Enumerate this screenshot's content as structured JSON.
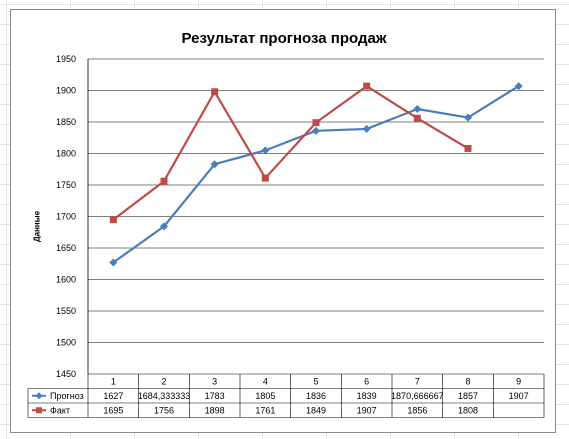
{
  "chart_data": {
    "type": "line",
    "title": "Результат прогноза продаж",
    "ylabel": "Данные",
    "xlabel": "",
    "ylim": [
      1450,
      1950
    ],
    "y_ticks": [
      "1450",
      "1500",
      "1550",
      "1600",
      "1650",
      "1700",
      "1750",
      "1800",
      "1850",
      "1900",
      "1950"
    ],
    "grid": true,
    "legend_placement": "data-table",
    "categories": [
      "1",
      "2",
      "3",
      "4",
      "5",
      "6",
      "7",
      "8",
      "9"
    ],
    "series": [
      {
        "name": "Прогноз",
        "color": "#4a7ebb",
        "marker": "diamond",
        "values": [
          1627,
          1684.333333,
          1783,
          1805,
          1836,
          1839,
          1870.666667,
          1857,
          1907
        ],
        "labels": [
          "1627",
          "1684,333333",
          "1783",
          "1805",
          "1836",
          "1839",
          "1870,666667",
          "1857",
          "1907"
        ]
      },
      {
        "name": "Факт",
        "color": "#be4b48",
        "marker": "square",
        "values": [
          1695,
          1756,
          1898,
          1761,
          1849,
          1907,
          1856,
          1808,
          null
        ],
        "labels": [
          "1695",
          "1756",
          "1898",
          "1761",
          "1849",
          "1907",
          "1856",
          "1808",
          ""
        ]
      }
    ]
  }
}
